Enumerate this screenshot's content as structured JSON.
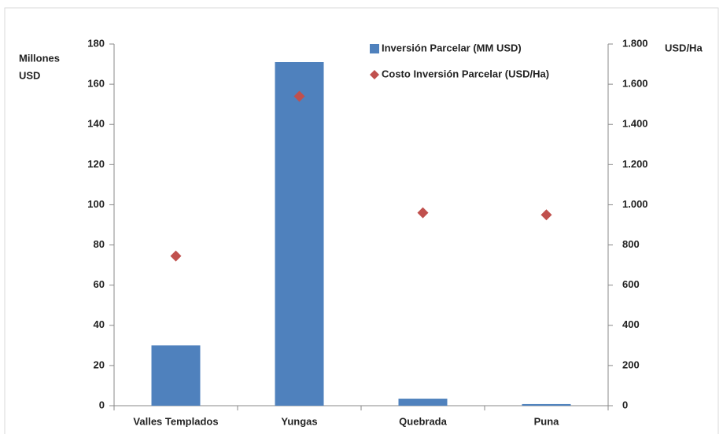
{
  "chart_data": {
    "type": "bar",
    "categories": [
      "Valles Templados",
      "Yungas",
      "Quebrada",
      "Puna"
    ],
    "series": [
      {
        "name": "Inversión Parcelar (MM USD)",
        "color": "#4f81bd",
        "type": "bar",
        "values": [
          30,
          171,
          3.5,
          0.8
        ]
      },
      {
        "name": "Costo Inversión Parcelar (USD/Ha)",
        "color": "#c0504d",
        "type": "scatter",
        "axis": "y2",
        "values": [
          745,
          1540,
          960,
          950
        ]
      }
    ],
    "ylabel": [
      "Millones",
      "USD"
    ],
    "y2label": "USD/Ha",
    "ylim": [
      0,
      180
    ],
    "yticks": [
      0,
      20,
      40,
      60,
      80,
      100,
      120,
      140,
      160,
      180
    ],
    "y2lim": [
      0,
      1800
    ],
    "y2ticks": [
      0,
      200,
      400,
      600,
      800,
      {
        "value": 1000,
        "label": "1.000"
      },
      {
        "value": 1200,
        "label": "1.200"
      },
      {
        "value": 1400,
        "label": "1.400"
      },
      {
        "value": 1600,
        "label": "1.600"
      },
      {
        "value": 1800,
        "label": "1.800"
      }
    ],
    "legend": "upper right"
  }
}
